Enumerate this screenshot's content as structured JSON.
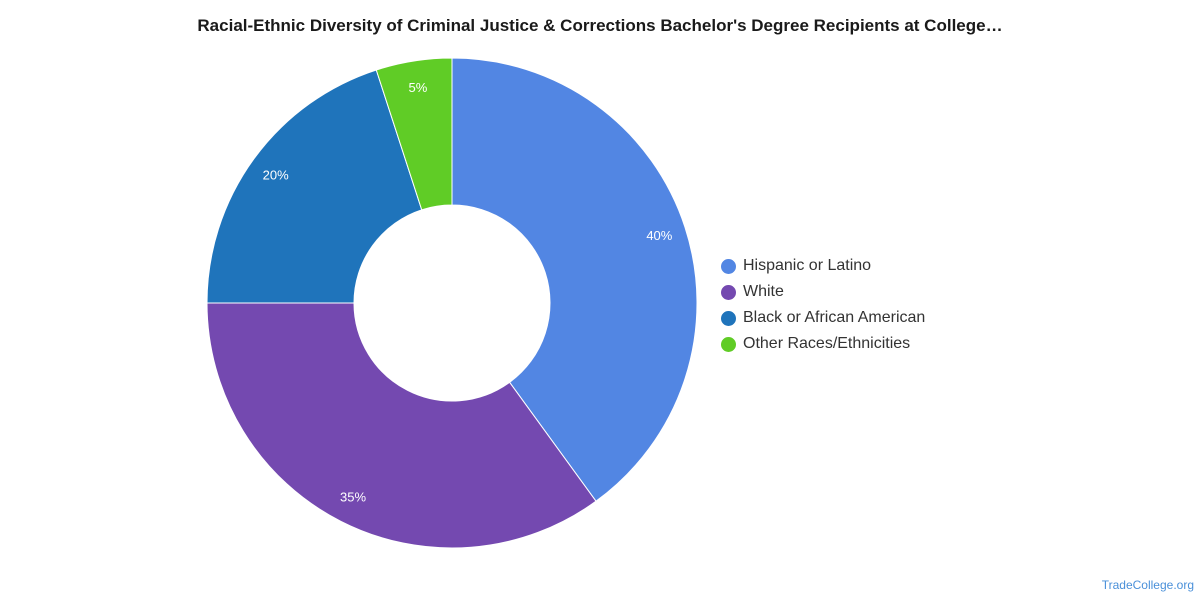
{
  "chart_data": {
    "type": "pie",
    "title": "Racial-Ethnic Diversity of Criminal Justice & Corrections Bachelor's Degree Recipients at College…",
    "categories": [
      "Hispanic or Latino",
      "White",
      "Black or African American",
      "Other Races/Ethnicities"
    ],
    "values": [
      40,
      35,
      20,
      5
    ],
    "data_labels": [
      "40%",
      "35%",
      "20%",
      "5%"
    ],
    "colors": [
      "#5286e3",
      "#7449b0",
      "#1f74bb",
      "#60cc26"
    ],
    "donut": true,
    "legend_position": "right"
  },
  "credit": "TradeCollege.org"
}
